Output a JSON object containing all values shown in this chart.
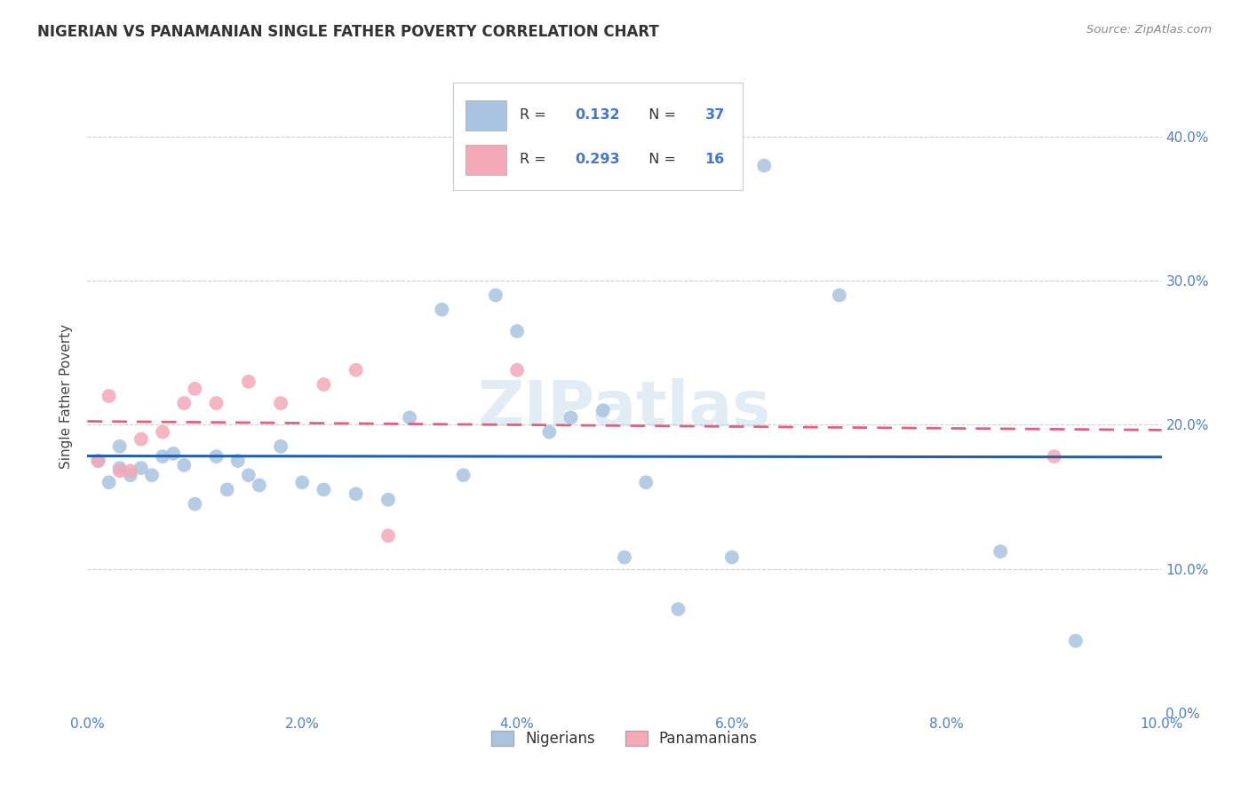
{
  "title": "NIGERIAN VS PANAMANIAN SINGLE FATHER POVERTY CORRELATION CHART",
  "source": "Source: ZipAtlas.com",
  "ylabel": "Single Father Poverty",
  "nigerians_label": "Nigerians",
  "panamanians_label": "Panamanians",
  "nigerian_color": "#a8c4e0",
  "panamanian_color": "#f4a8b8",
  "nigerian_line_color": "#2060b0",
  "panamanian_line_color": "#e06080",
  "watermark": "ZIPatlas",
  "background": "#ffffff",
  "grid_color": "#c8c8d8",
  "xlim": [
    0.0,
    0.1
  ],
  "ylim": [
    0.0,
    0.44
  ],
  "yticks": [
    0.0,
    0.1,
    0.2,
    0.3,
    0.4
  ],
  "xticks": [
    0.0,
    0.02,
    0.04,
    0.06,
    0.08,
    0.1
  ],
  "nigerian_x": [
    0.001,
    0.002,
    0.003,
    0.003,
    0.004,
    0.005,
    0.006,
    0.007,
    0.008,
    0.009,
    0.01,
    0.012,
    0.013,
    0.014,
    0.015,
    0.016,
    0.018,
    0.02,
    0.022,
    0.025,
    0.028,
    0.03,
    0.033,
    0.035,
    0.038,
    0.04,
    0.043,
    0.045,
    0.048,
    0.05,
    0.052,
    0.055,
    0.06,
    0.063,
    0.07,
    0.085,
    0.092
  ],
  "nigerian_y": [
    0.175,
    0.16,
    0.17,
    0.185,
    0.165,
    0.17,
    0.165,
    0.178,
    0.18,
    0.172,
    0.145,
    0.178,
    0.155,
    0.175,
    0.165,
    0.158,
    0.185,
    0.16,
    0.155,
    0.152,
    0.148,
    0.205,
    0.28,
    0.165,
    0.29,
    0.265,
    0.195,
    0.205,
    0.21,
    0.108,
    0.16,
    0.072,
    0.108,
    0.38,
    0.29,
    0.112,
    0.05
  ],
  "panamanian_x": [
    0.001,
    0.002,
    0.003,
    0.004,
    0.005,
    0.007,
    0.009,
    0.01,
    0.012,
    0.015,
    0.018,
    0.022,
    0.025,
    0.028,
    0.04,
    0.09
  ],
  "panamanian_y": [
    0.175,
    0.22,
    0.168,
    0.168,
    0.19,
    0.195,
    0.215,
    0.225,
    0.215,
    0.23,
    0.215,
    0.228,
    0.238,
    0.123,
    0.238,
    0.178
  ]
}
